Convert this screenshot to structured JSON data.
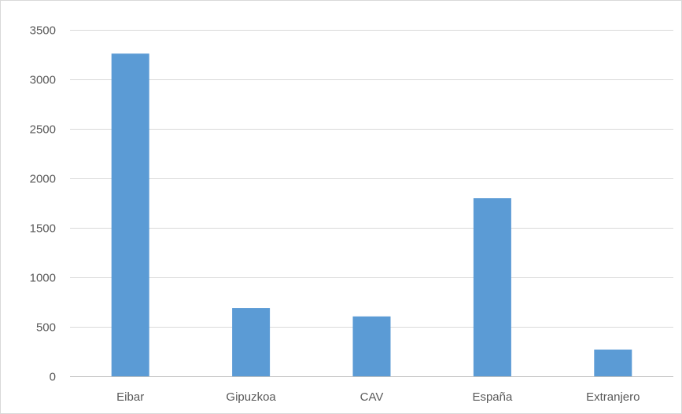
{
  "chart_data": {
    "type": "bar",
    "categories": [
      "Eibar",
      "Gipuzkoa",
      "CAV",
      "España",
      "Extranjero"
    ],
    "values": [
      3260,
      690,
      605,
      1800,
      270
    ],
    "title": "",
    "xlabel": "",
    "ylabel": "",
    "ylim": [
      0,
      3500
    ],
    "yticks": [
      0,
      500,
      1000,
      1500,
      2000,
      2500,
      3000,
      3500
    ],
    "grid": true,
    "legend": "none",
    "bar_color": "#5b9bd5"
  }
}
